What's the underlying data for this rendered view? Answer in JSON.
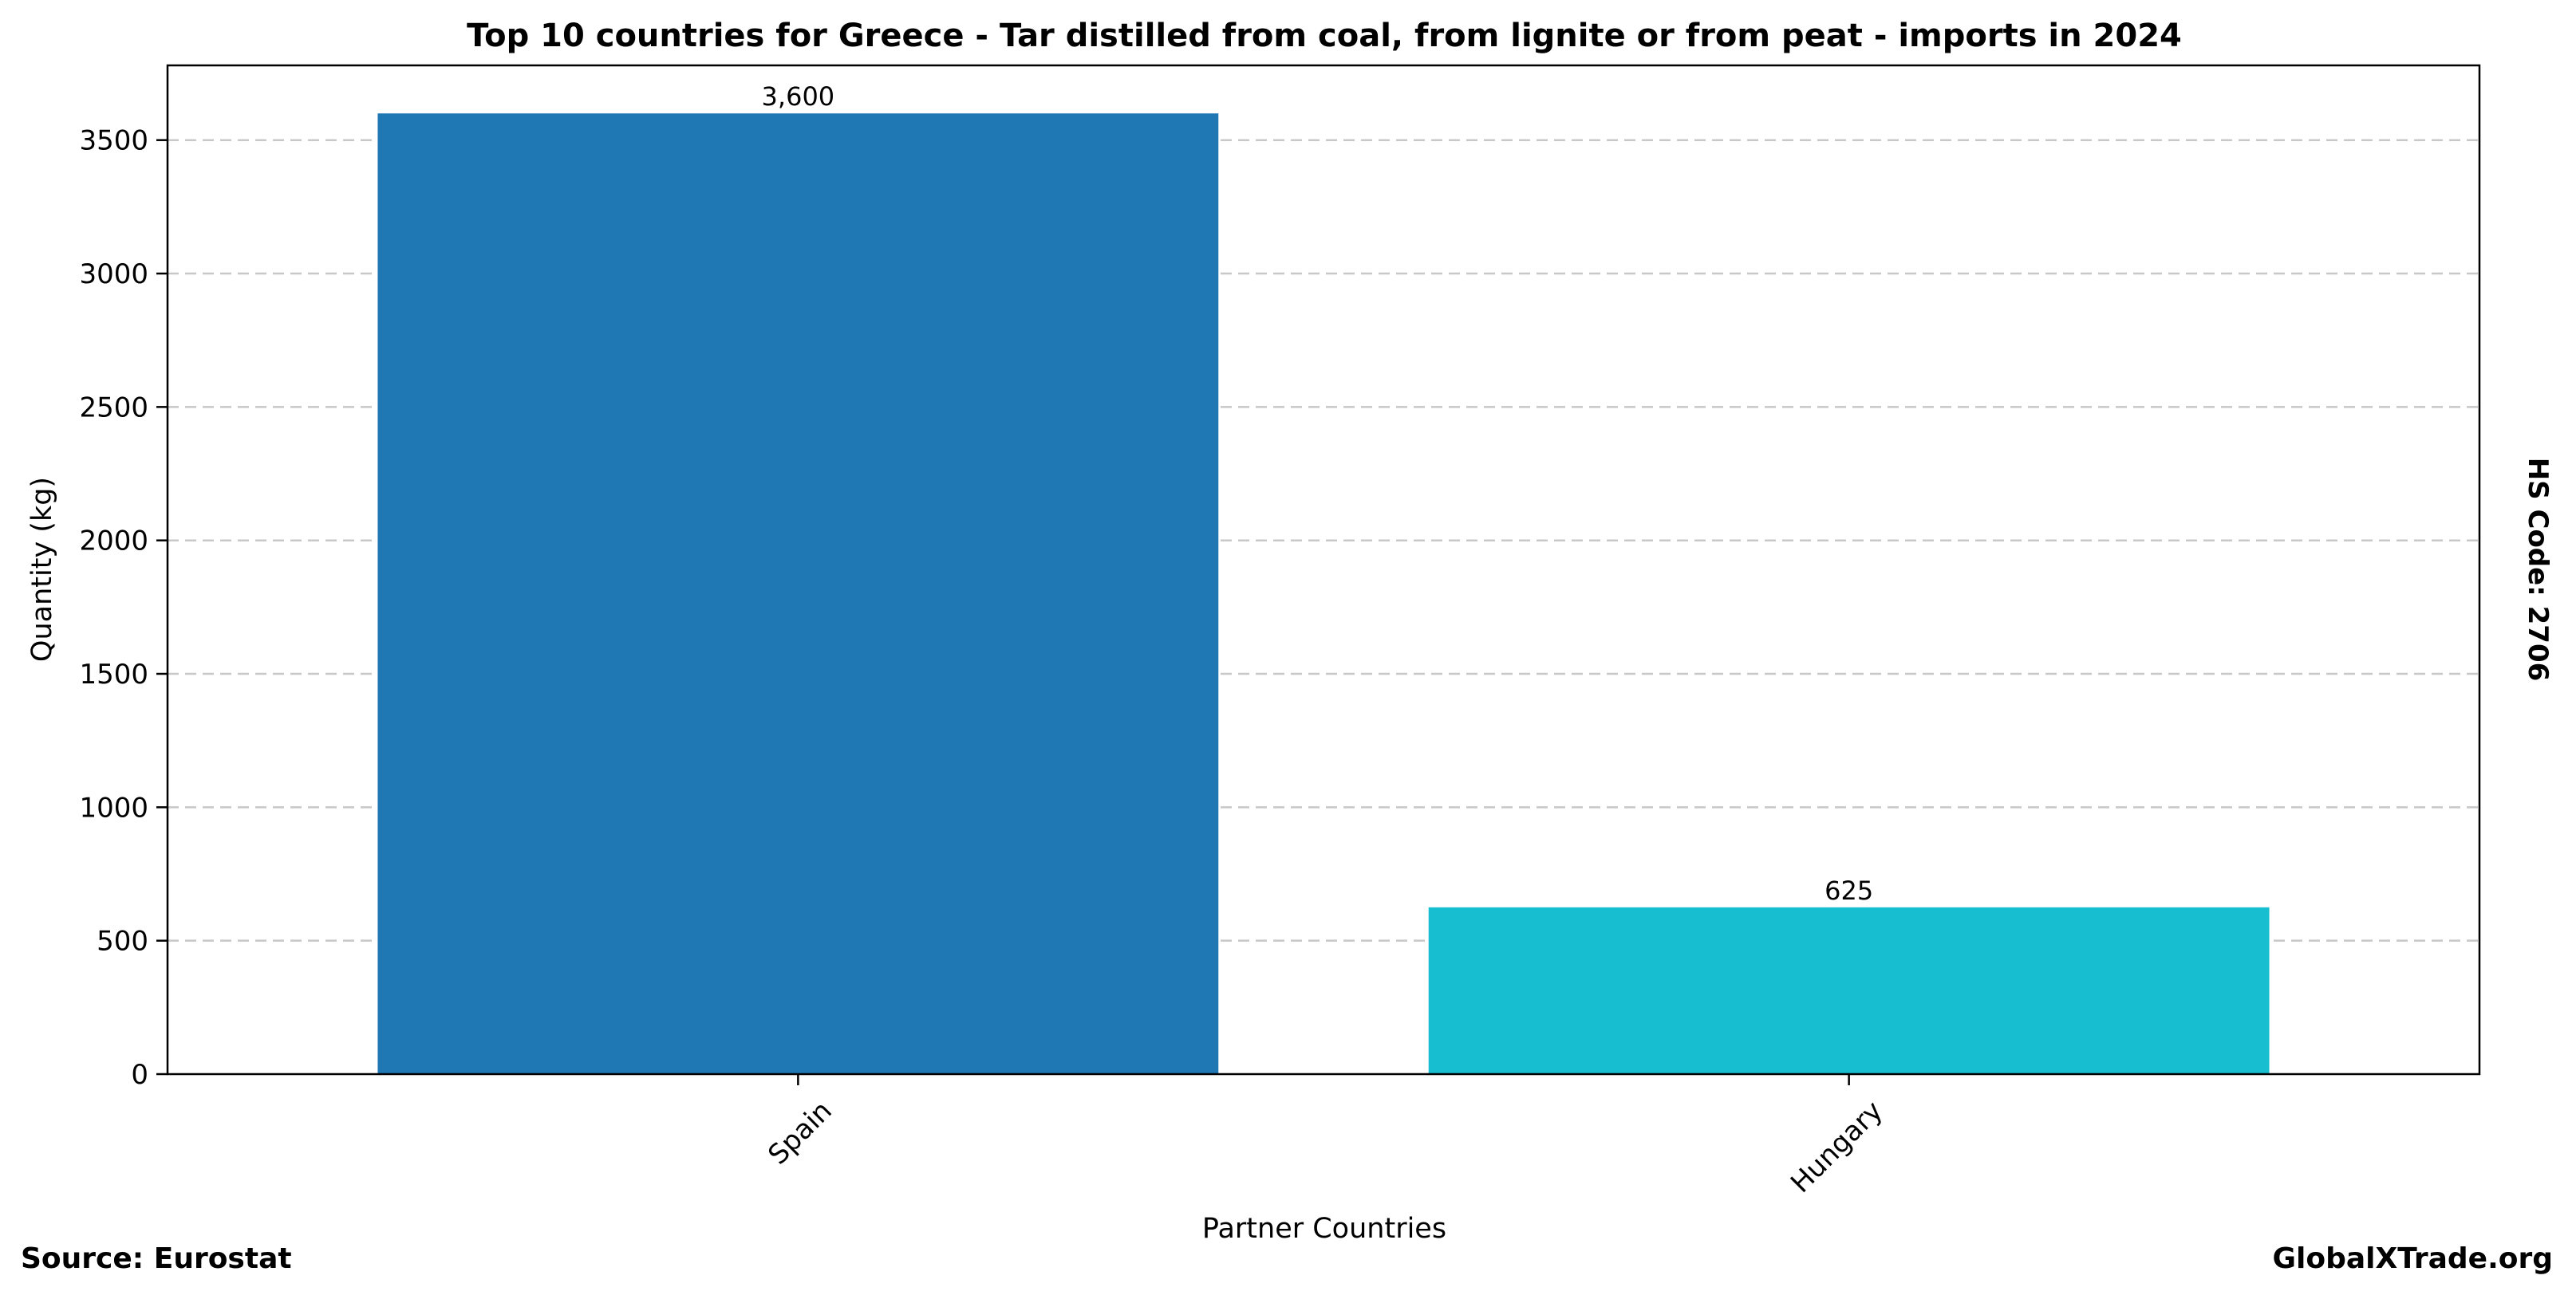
{
  "chart_data": {
    "type": "bar",
    "title": "Top 10 countries for Greece - Tar distilled from coal, from lignite or from peat - imports in 2024",
    "xlabel": "Partner Countries",
    "ylabel": "Quantity (kg)",
    "categories": [
      "Spain",
      "Hungary"
    ],
    "values": [
      3600,
      625
    ],
    "value_labels": [
      "3,600",
      "625"
    ],
    "bar_colors": [
      "#1f77b4",
      "#17becf"
    ],
    "ylim": [
      0,
      3780
    ],
    "yticks": [
      0,
      500,
      1000,
      1500,
      2000,
      2500,
      3000,
      3500
    ],
    "grid": "y-dashed",
    "legend": "none"
  },
  "side_note": "HS Code: 2706",
  "footer": {
    "source": "Source: Eurostat",
    "brand": "GlobalXTrade.org"
  }
}
